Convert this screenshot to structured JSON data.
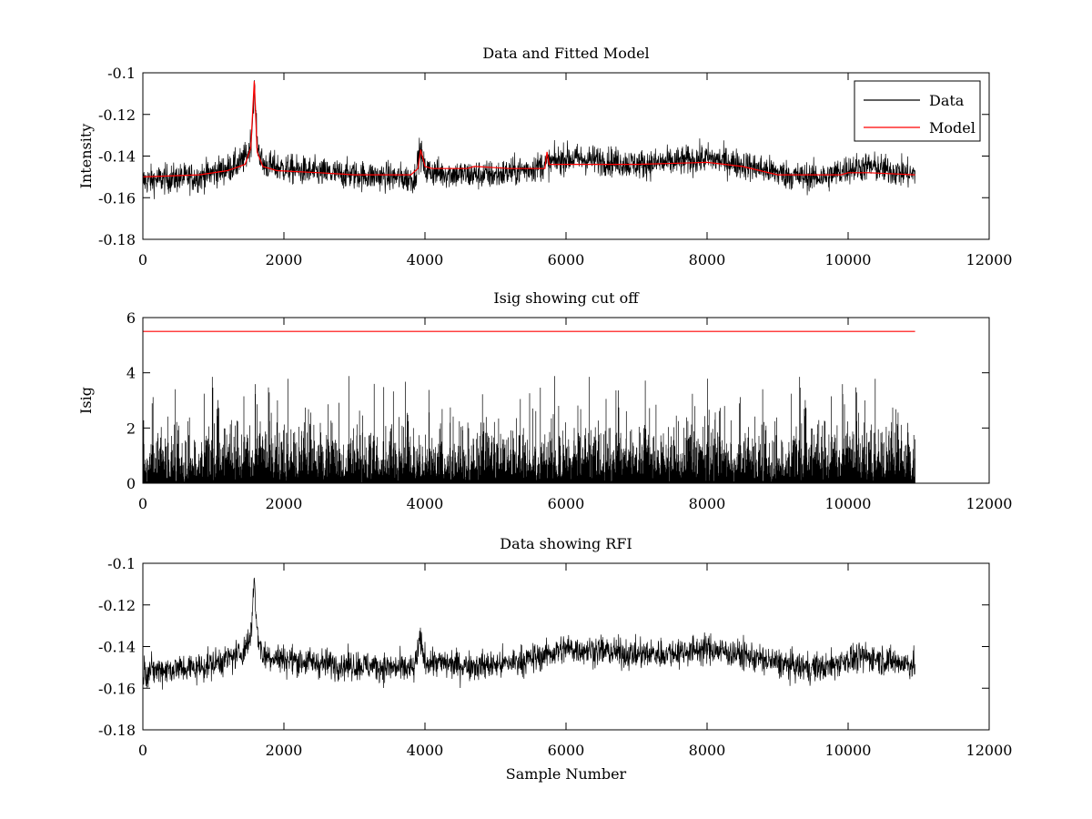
{
  "chart_data": [
    {
      "type": "line",
      "title": "Data and Fitted Model",
      "xlabel": "",
      "ylabel": "Intensity",
      "xlim": [
        0,
        12000
      ],
      "ylim": [
        -0.18,
        -0.1
      ],
      "xticks": [
        0,
        2000,
        4000,
        6000,
        8000,
        10000,
        12000
      ],
      "xtick_labels": [
        "0",
        "2000",
        "4000",
        "6000",
        "8000",
        "10000",
        "12000"
      ],
      "yticks": [
        -0.18,
        -0.16,
        -0.14,
        -0.12,
        -0.1
      ],
      "ytick_labels": [
        "-0.18",
        "-0.16",
        "-0.14",
        "-0.12",
        "-0.1"
      ],
      "grid": false,
      "legend": {
        "position": "top-right",
        "entries": [
          "Data",
          "Model"
        ]
      },
      "series": [
        {
          "name": "Data",
          "color": "#000000",
          "style": "noisy",
          "noise": 0.0035,
          "x": [
            0,
            300,
            800,
            1200,
            1400,
            1500,
            1540,
            1580,
            1620,
            1700,
            2000,
            2500,
            3000,
            3500,
            3850,
            3930,
            4000,
            4200,
            4600,
            5000,
            5500,
            6000,
            6500,
            7000,
            7500,
            8000,
            8500,
            9000,
            9300,
            9700,
            10000,
            10300,
            10600,
            10950
          ],
          "y": [
            -0.152,
            -0.151,
            -0.15,
            -0.146,
            -0.143,
            -0.138,
            -0.131,
            -0.106,
            -0.134,
            -0.144,
            -0.146,
            -0.148,
            -0.149,
            -0.15,
            -0.151,
            -0.137,
            -0.147,
            -0.148,
            -0.149,
            -0.149,
            -0.146,
            -0.141,
            -0.142,
            -0.144,
            -0.143,
            -0.141,
            -0.144,
            -0.148,
            -0.15,
            -0.15,
            -0.146,
            -0.145,
            -0.147,
            -0.149
          ]
        },
        {
          "name": "Model",
          "color": "#ff0000",
          "style": "line",
          "x": [
            0,
            800,
            1200,
            1450,
            1530,
            1580,
            1620,
            1700,
            1900,
            2500,
            3000,
            3800,
            3900,
            3940,
            4000,
            4100,
            4600,
            4700,
            5200,
            5700,
            5730,
            5760,
            6200,
            7000,
            8000,
            8500,
            9000,
            9500,
            9900,
            10000,
            10300,
            10950
          ],
          "y": [
            -0.15,
            -0.149,
            -0.147,
            -0.144,
            -0.136,
            -0.104,
            -0.138,
            -0.145,
            -0.147,
            -0.148,
            -0.149,
            -0.149,
            -0.146,
            -0.137,
            -0.145,
            -0.146,
            -0.146,
            -0.145,
            -0.146,
            -0.146,
            -0.138,
            -0.144,
            -0.144,
            -0.144,
            -0.143,
            -0.145,
            -0.149,
            -0.149,
            -0.149,
            -0.148,
            -0.148,
            -0.149
          ]
        }
      ]
    },
    {
      "type": "line",
      "title": "Isig showing cut off",
      "xlabel": "",
      "ylabel": "Isig",
      "xlim": [
        0,
        12000
      ],
      "ylim": [
        0,
        6
      ],
      "xticks": [
        0,
        2000,
        4000,
        6000,
        8000,
        10000,
        12000
      ],
      "xtick_labels": [
        "0",
        "2000",
        "4000",
        "6000",
        "8000",
        "10000",
        "12000"
      ],
      "yticks": [
        0,
        2,
        4,
        6
      ],
      "ytick_labels": [
        "0",
        "2",
        "4",
        "6"
      ],
      "grid": false,
      "series": [
        {
          "color": "#000000",
          "style": "spikes",
          "x_range": [
            0,
            10950
          ],
          "typical_max": 2.2,
          "peak_max": 3.9
        },
        {
          "color": "#ff0000",
          "style": "line",
          "x": [
            0,
            10950
          ],
          "y": [
            5.5,
            5.5
          ]
        }
      ]
    },
    {
      "type": "line",
      "title": "Data showing RFI",
      "xlabel": "Sample Number",
      "ylabel": "",
      "xlim": [
        0,
        12000
      ],
      "ylim": [
        -0.18,
        -0.1
      ],
      "xticks": [
        0,
        2000,
        4000,
        6000,
        8000,
        10000,
        12000
      ],
      "xtick_labels": [
        "0",
        "2000",
        "4000",
        "6000",
        "8000",
        "10000",
        "12000"
      ],
      "yticks": [
        -0.18,
        -0.16,
        -0.14,
        -0.12,
        -0.1
      ],
      "ytick_labels": [
        "-0.18",
        "-0.16",
        "-0.14",
        "-0.12",
        "-0.1"
      ],
      "grid": false,
      "series": [
        {
          "color": "#000000",
          "style": "noisy",
          "noise": 0.0035,
          "x": [
            0,
            300,
            800,
            1200,
            1400,
            1500,
            1540,
            1580,
            1620,
            1700,
            2000,
            2500,
            3000,
            3500,
            3850,
            3930,
            4000,
            4200,
            4600,
            5000,
            5500,
            6000,
            6500,
            7000,
            7500,
            8000,
            8500,
            9000,
            9300,
            9700,
            10000,
            10300,
            10600,
            10950
          ],
          "y": [
            -0.152,
            -0.151,
            -0.15,
            -0.146,
            -0.143,
            -0.138,
            -0.131,
            -0.106,
            -0.134,
            -0.144,
            -0.146,
            -0.148,
            -0.149,
            -0.15,
            -0.151,
            -0.137,
            -0.147,
            -0.148,
            -0.149,
            -0.149,
            -0.146,
            -0.141,
            -0.142,
            -0.144,
            -0.143,
            -0.141,
            -0.144,
            -0.148,
            -0.15,
            -0.15,
            -0.146,
            -0.145,
            -0.147,
            -0.149
          ]
        }
      ]
    }
  ]
}
